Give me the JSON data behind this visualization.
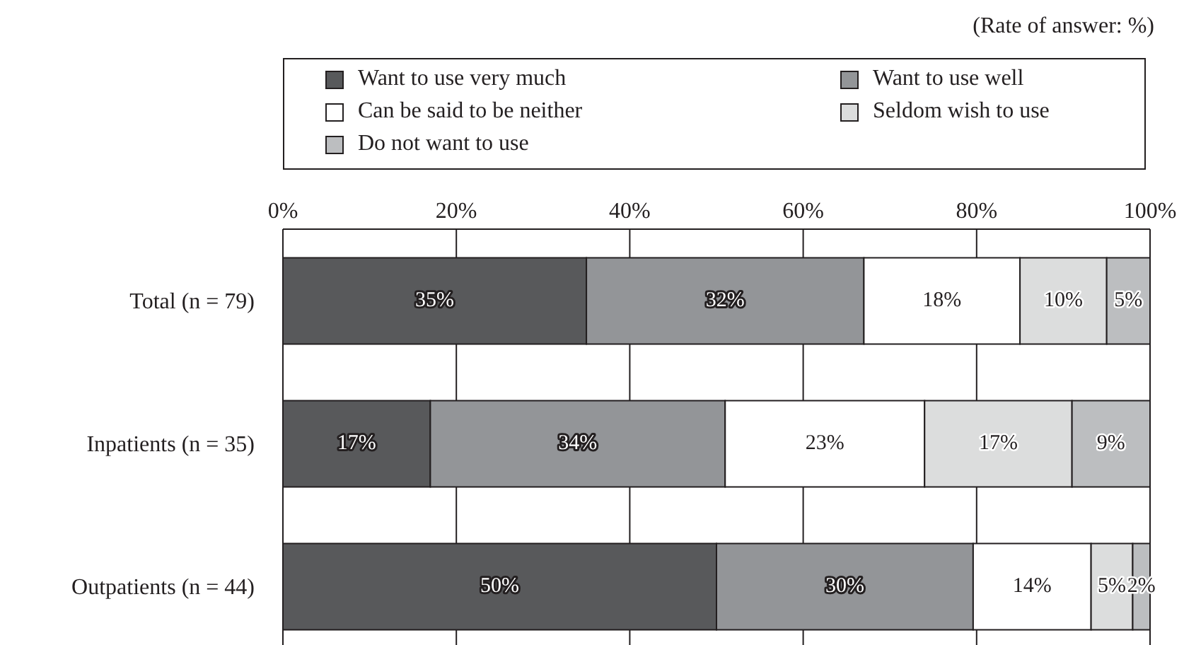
{
  "chart_data": {
    "type": "bar",
    "orientation": "horizontal",
    "stacked": true,
    "categories": [
      "Total (n = 79)",
      "Inpatients (n = 35)",
      "Outpatients (n = 44)"
    ],
    "series": [
      {
        "name": "Want to use very much",
        "color": "#58595b",
        "values": [
          35,
          17,
          50
        ],
        "value_labels": [
          "35%",
          "17%",
          "50%"
        ]
      },
      {
        "name": "Want to use well",
        "color": "#939598",
        "values": [
          32,
          34,
          29.6
        ],
        "value_labels": [
          "32%",
          "34%",
          "30%"
        ]
      },
      {
        "name": "Can be said to be neither",
        "color": "#ffffff",
        "values": [
          18,
          23,
          13.6
        ],
        "value_labels": [
          "18%",
          "23%",
          "14%"
        ]
      },
      {
        "name": "Seldom wish to use",
        "color": "#dcdddd",
        "values": [
          10,
          17,
          4.8
        ],
        "value_labels": [
          "10%",
          "17%",
          "5%"
        ]
      },
      {
        "name": "Do not want to use",
        "color": "#bcbec0",
        "values": [
          5,
          9,
          2
        ],
        "value_labels": [
          "5%",
          "9%",
          "2%"
        ]
      }
    ],
    "xlim": [
      0,
      100
    ],
    "xticks": [
      {
        "value": 0,
        "label": "0%"
      },
      {
        "value": 20,
        "label": "20%"
      },
      {
        "value": 40,
        "label": "40%"
      },
      {
        "value": 60,
        "label": "60%"
      },
      {
        "value": 80,
        "label": "80%"
      },
      {
        "value": 100,
        "label": "100%"
      }
    ],
    "grid": "x",
    "legend": "top",
    "annotations": [
      "(Rate of answer: %)"
    ]
  }
}
